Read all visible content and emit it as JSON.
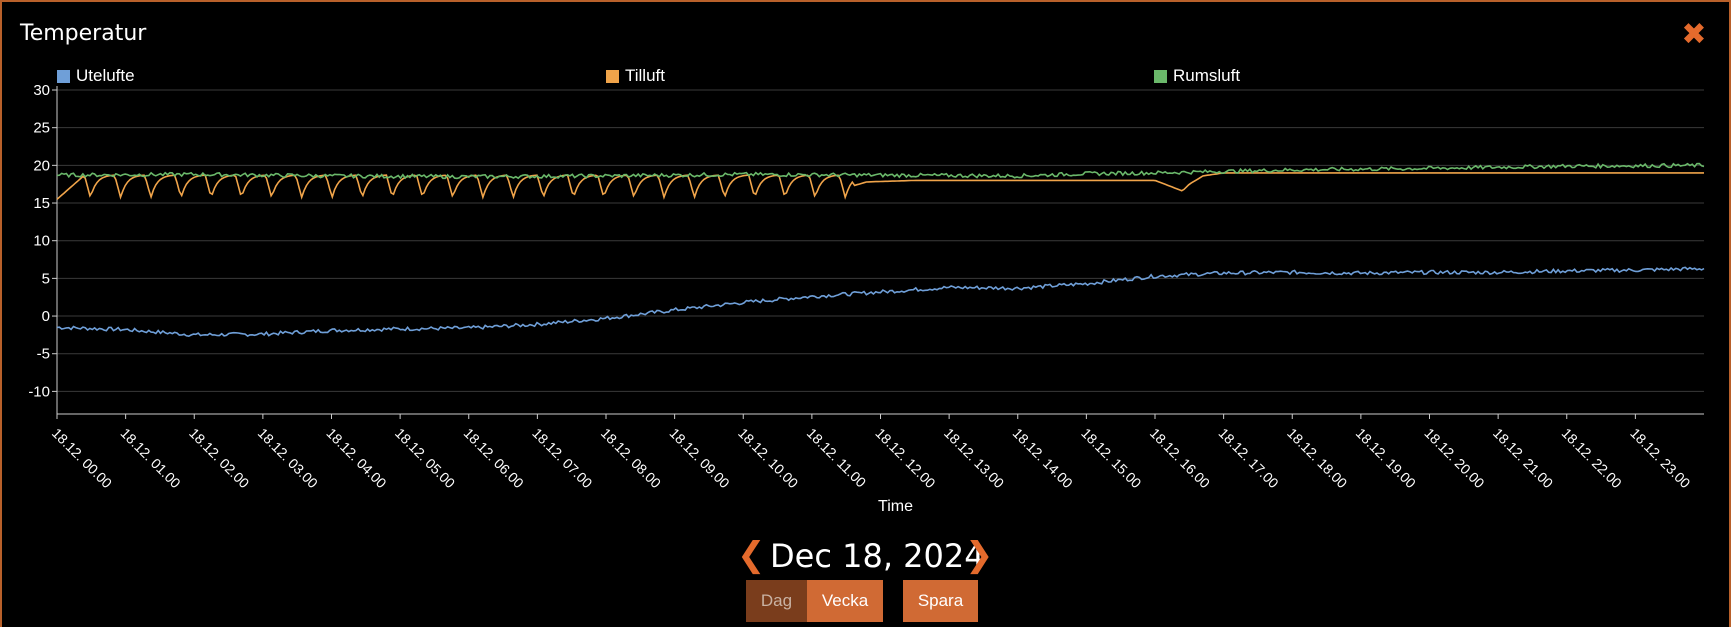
{
  "window": {
    "title": "Temperatur",
    "close_icon": "close-icon"
  },
  "legend": [
    {
      "label": "Utelufte",
      "color": "#6f9fd8"
    },
    {
      "label": "Tilluft",
      "color": "#f0a44a"
    },
    {
      "label": "Rumsluft",
      "color": "#6ab86a"
    }
  ],
  "chart_data": {
    "type": "line",
    "xlabel": "Time",
    "ylabel": "",
    "ylim": [
      -13,
      30
    ],
    "yticks": [
      30,
      25,
      20,
      15,
      10,
      5,
      0,
      -5,
      -10
    ],
    "xticks": [
      "18.12. 00.00",
      "18.12. 01.00",
      "18.12. 02.00",
      "18.12. 03.00",
      "18.12. 04.00",
      "18.12. 05.00",
      "18.12. 06.00",
      "18.12. 07.00",
      "18.12. 08.00",
      "18.12. 09.00",
      "18.12. 10.00",
      "18.12. 11.00",
      "18.12. 12.00",
      "18.12. 13.00",
      "18.12. 14.00",
      "18.12. 15.00",
      "18.12. 16.00",
      "18.12. 17.00",
      "18.12. 18.00",
      "18.12. 19.00",
      "18.12. 20.00",
      "18.12. 21.00",
      "18.12. 22.00",
      "18.12. 23.00"
    ],
    "grid": true,
    "legend_position": "top",
    "series": [
      {
        "name": "Utelufte",
        "color": "#6f9fd8",
        "x": [
          0,
          1,
          2,
          3,
          4,
          5,
          6,
          7,
          8,
          9,
          10,
          11,
          12,
          13,
          14,
          15,
          16,
          17,
          18,
          19,
          20,
          21,
          22,
          23,
          24
        ],
        "y": [
          -1.5,
          -1.8,
          -2.5,
          -2.4,
          -1.9,
          -1.7,
          -1.6,
          -1.1,
          -0.3,
          0.8,
          1.8,
          2.6,
          3.2,
          3.8,
          3.7,
          4.3,
          5.3,
          5.7,
          5.8,
          5.7,
          5.8,
          5.8,
          6.0,
          6.1,
          6.3
        ]
      },
      {
        "name": "Tilluft",
        "color": "#f0a44a",
        "x": [
          0,
          11.3,
          11.8,
          12.5,
          16,
          16.4,
          16.5,
          16.7,
          17,
          18,
          24
        ],
        "y": [
          15.5,
          16.5,
          17.8,
          18.0,
          18.0,
          16.6,
          17.5,
          18.6,
          19.0,
          19.0,
          19.0
        ],
        "oscillation": {
          "from": 0.4,
          "to": 11.6,
          "period": 0.44,
          "high": 18.7,
          "low": 15.7
        }
      },
      {
        "name": "Rumsluft",
        "color": "#6ab86a",
        "x": [
          0,
          2,
          4,
          6,
          8,
          10,
          12,
          14,
          15,
          16,
          17,
          18,
          20,
          22,
          24
        ],
        "y": [
          18.7,
          18.8,
          18.6,
          18.5,
          18.6,
          18.8,
          18.7,
          18.6,
          18.9,
          19.0,
          19.2,
          19.4,
          19.6,
          19.9,
          20.0
        ]
      }
    ]
  },
  "footer": {
    "date": "Dec 18, 2024",
    "prev_icon": "chevron-left-icon",
    "next_icon": "chevron-right-icon",
    "buttons": {
      "dag": "Dag",
      "vecka": "Vecka",
      "spara": "Spara"
    }
  }
}
